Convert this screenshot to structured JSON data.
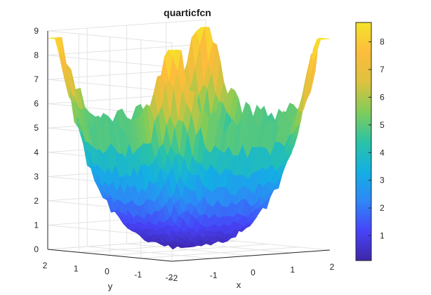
{
  "chart_data": {
    "type": "surface",
    "title": "quarticfcn",
    "xlabel": "x",
    "ylabel": "y",
    "zlabel": "",
    "xlim": [
      -2,
      2
    ],
    "ylim": [
      -2,
      2
    ],
    "zlim": [
      0,
      9
    ],
    "x_ticks": [
      "-2",
      "-1",
      "0",
      "1",
      "2"
    ],
    "y_ticks": [
      "2",
      "1",
      "0",
      "-1",
      "-2"
    ],
    "z_ticks": [
      "0",
      "1",
      "2",
      "3",
      "4",
      "5",
      "6",
      "7",
      "8",
      "9"
    ],
    "grid": true,
    "view": "3d-perspective-azimuth-45",
    "colormap": "parula",
    "colorbar": {
      "ticks": [
        "1",
        "2",
        "3",
        "4",
        "5",
        "6",
        "7",
        "8"
      ],
      "range": [
        0.1,
        8.7
      ]
    },
    "surface_description_values": {
      "min_value": 0.1,
      "max_value": 8.7,
      "corner_peaks": [
        8.5,
        8.5,
        8.6,
        8.7
      ],
      "ridge_height": 7.6,
      "noise_amplitude": 0.6
    },
    "colors": {
      "colormap_stops": [
        "#3e26a8",
        "#4743f8",
        "#2e87f7",
        "#13b0e3",
        "#2bc3a4",
        "#81cc59",
        "#ddc23d",
        "#fdbc3c",
        "#f5e428"
      ]
    }
  }
}
